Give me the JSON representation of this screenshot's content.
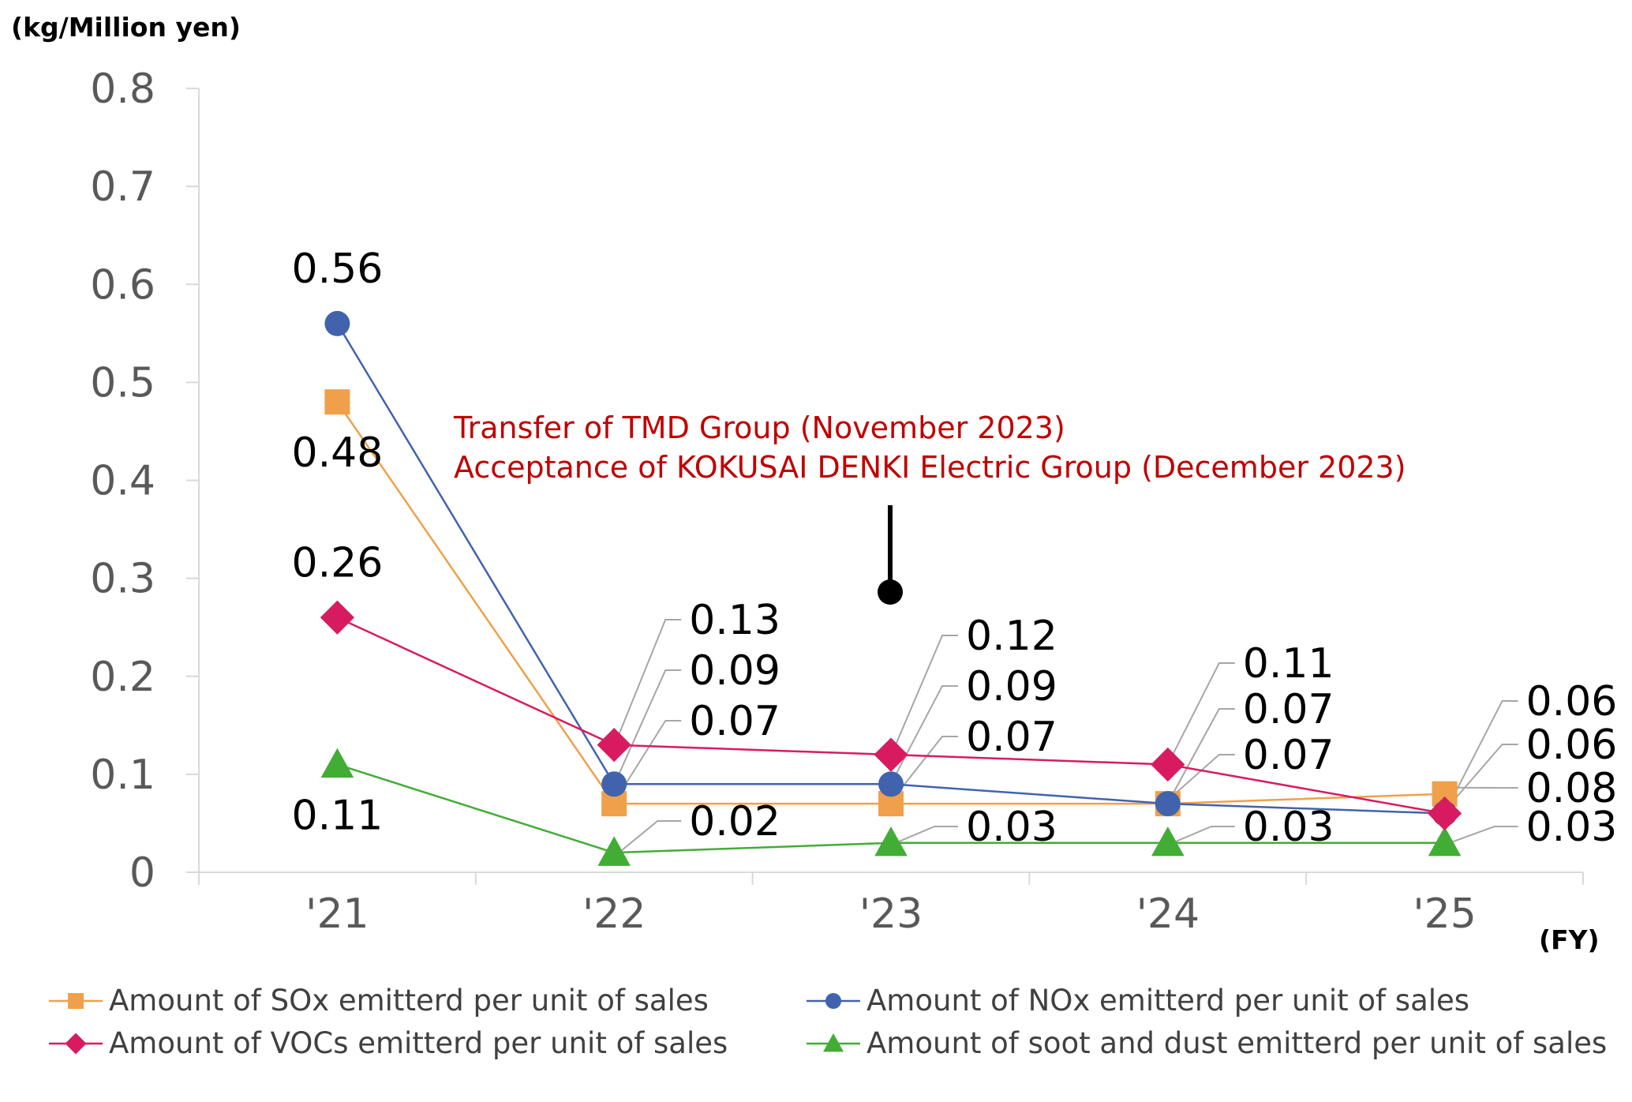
{
  "chart_data": {
    "type": "line",
    "ylabel": "(kg/Million yen)",
    "xlabel": "(FY)",
    "categories": [
      "'21",
      "'22",
      "'23",
      "'24",
      "'25"
    ],
    "ylim": [
      0,
      0.8
    ],
    "yticks": [
      "0",
      "0.1",
      "0.2",
      "0.3",
      "0.4",
      "0.5",
      "0.6",
      "0.7",
      "0.8"
    ],
    "grid": false,
    "legend_position": "bottom",
    "series": [
      {
        "name": "Amount of SOx emitterd per unit of sales",
        "values": [
          0.48,
          0.07,
          0.07,
          0.07,
          0.08
        ],
        "labels": [
          "0.48",
          "0.07",
          "0.07",
          "0.07",
          "0.08"
        ],
        "color": "#F0A04B",
        "marker": "square"
      },
      {
        "name": "Amount of NOx emitterd per unit of sales",
        "values": [
          0.56,
          0.09,
          0.09,
          0.07,
          0.06
        ],
        "labels": [
          "0.56",
          "0.09",
          "0.09",
          "0.07",
          "0.06"
        ],
        "color": "#4163AE",
        "marker": "circle"
      },
      {
        "name": "Amount of VOCs emitterd per unit of sales",
        "values": [
          0.26,
          0.13,
          0.12,
          0.11,
          0.06
        ],
        "labels": [
          "0.26",
          "0.13",
          "0.12",
          "0.11",
          "0.06"
        ],
        "color": "#D81B60",
        "marker": "diamond"
      },
      {
        "name": "Amount of soot and dust emitterd per unit of sales",
        "values": [
          0.11,
          0.02,
          0.03,
          0.03,
          0.03
        ],
        "labels": [
          "0.11",
          "0.02",
          "0.03",
          "0.03",
          "0.03"
        ],
        "color": "#41AD35",
        "marker": "triangle"
      }
    ],
    "annotation": {
      "lines": [
        "Transfer of TMD Group (November 2023)",
        "Acceptance of KOKUSAI DENKI Electric Group (December 2023)"
      ],
      "color": "#C00000"
    }
  }
}
